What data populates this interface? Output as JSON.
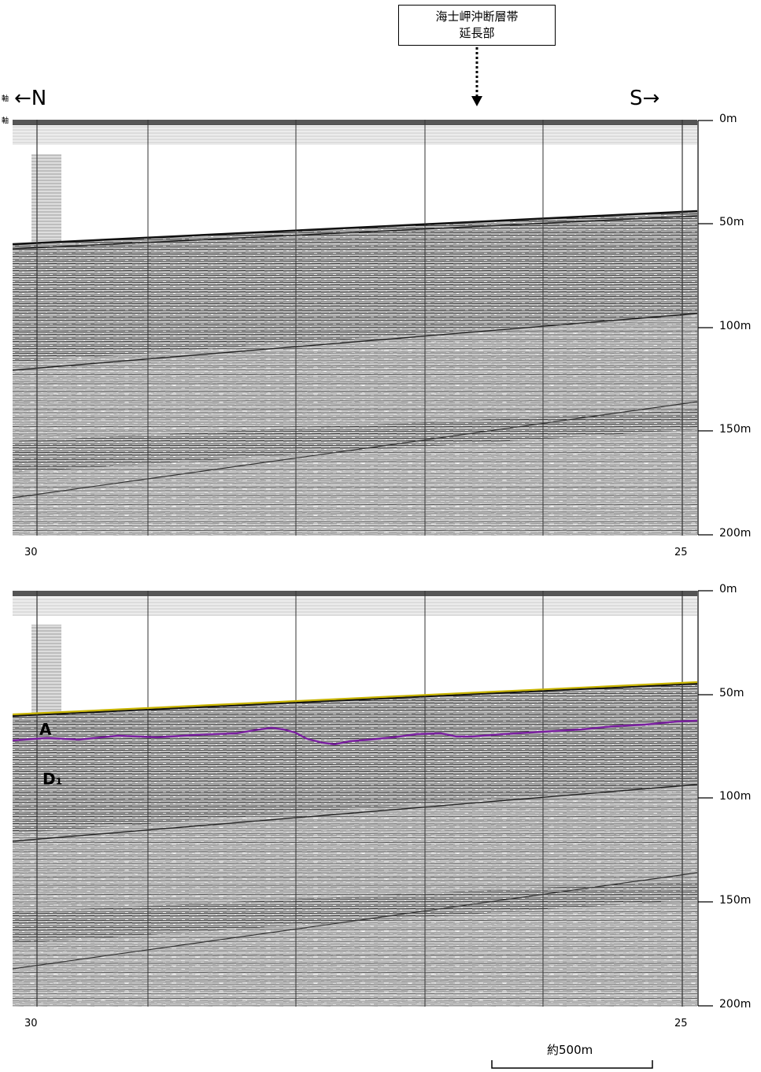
{
  "callout": {
    "line1": "海士岬沖断層帯",
    "line2": "延長部"
  },
  "direction": {
    "north": "←N",
    "south": "S→"
  },
  "axis_marks": [
    "軸",
    "軸"
  ],
  "depth_ticks": [
    "0m",
    "50m",
    "100m",
    "150m",
    "200m"
  ],
  "shot_labels": {
    "left": "30",
    "right": "25"
  },
  "reflector_labels": {
    "a": "A",
    "d1": "D₁"
  },
  "scale_bar": {
    "label": "約500m"
  },
  "colors": {
    "seafloor_pick": "#c8b400",
    "a_reflector": "#7a1fa0"
  }
}
